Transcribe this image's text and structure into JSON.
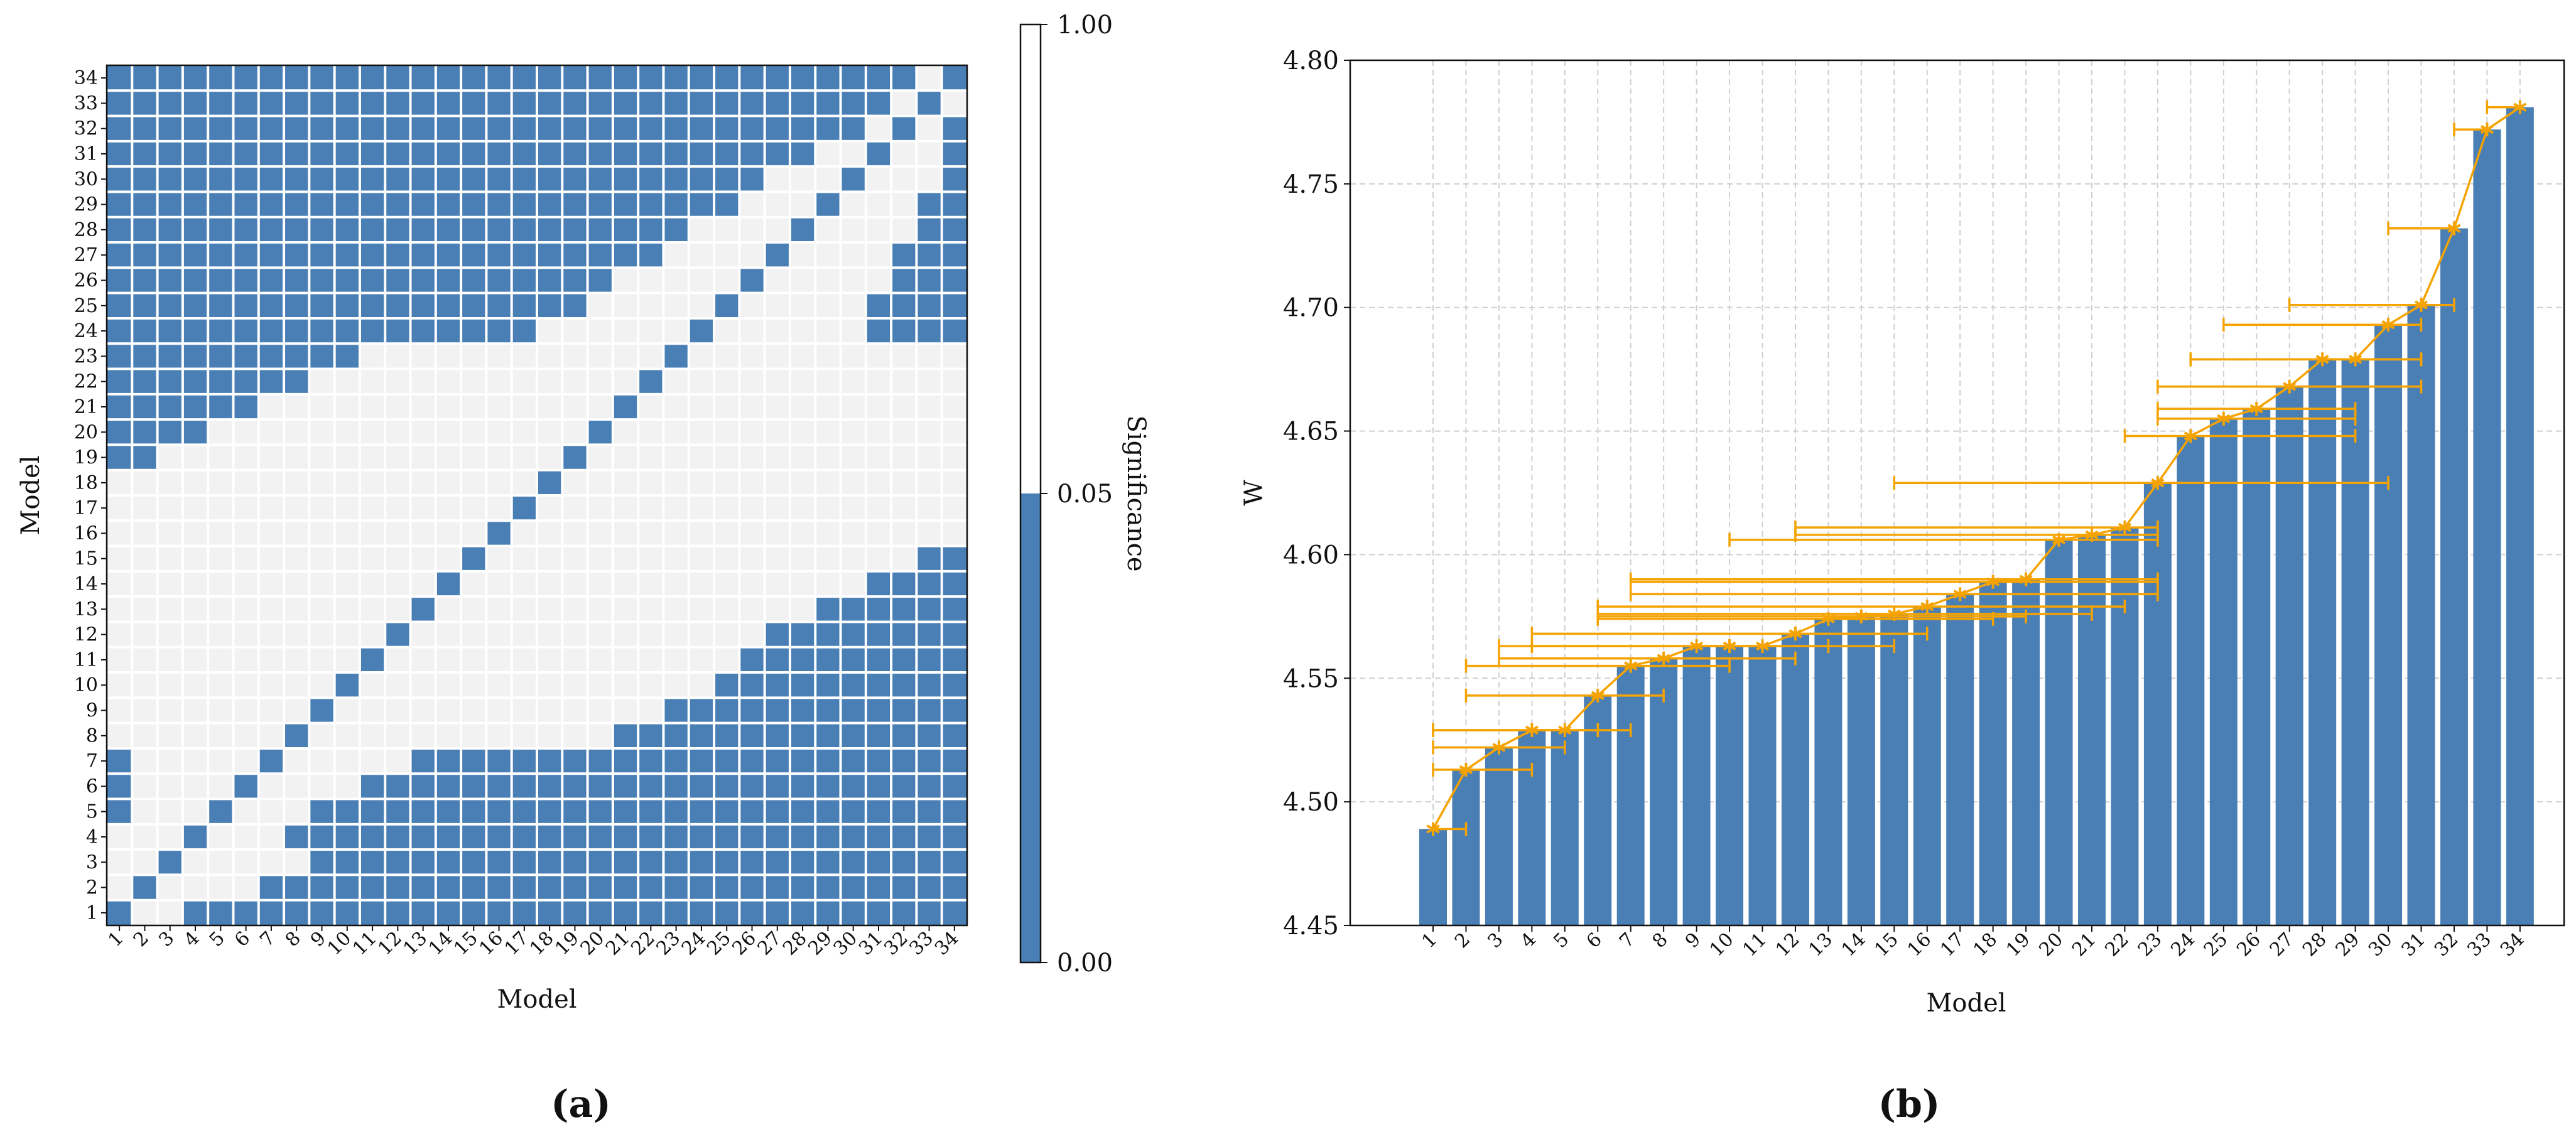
{
  "panel_a_label": "(a)",
  "panel_b_label": "(b)",
  "chart_data": [
    {
      "type": "heatmap",
      "panel": "(a)",
      "xlabel": "Model",
      "ylabel": "Model",
      "models": [
        "1",
        "2",
        "3",
        "4",
        "5",
        "6",
        "7",
        "8",
        "9",
        "10",
        "11",
        "12",
        "13",
        "14",
        "15",
        "16",
        "17",
        "18",
        "19",
        "20",
        "21",
        "22",
        "23",
        "24",
        "25",
        "26",
        "27",
        "28",
        "29",
        "30",
        "31",
        "32",
        "33",
        "34"
      ],
      "cell_values": {
        "significant": 0.0,
        "not_significant": 1.0
      },
      "nonsignificant_rule": "cell (i,j) is white (not significant) when i != j and |i-j| <= limit[i] (limits are symmetric); diagonal is blue",
      "nonsignificant_limit_by_model": [
        2,
        4,
        5,
        3,
        3,
        4,
        5,
        12,
        13,
        14,
        14,
        14,
        15,
        16,
        17,
        18,
        18,
        17,
        16,
        15,
        14,
        13,
        12,
        6,
        5,
        5,
        4,
        4,
        3,
        3,
        2,
        1,
        1,
        1
      ],
      "colorbar": {
        "label": "Significance",
        "ticks": [
          "0.00",
          "0.05",
          "1.00"
        ],
        "boundaries": [
          0.0,
          0.05,
          1.0
        ],
        "colors": [
          "#4a7fb5",
          "#ffffff"
        ]
      },
      "colors": {
        "significant": "#4a7fb5",
        "not_significant": "#f2f2f2",
        "grid": "#ffffff"
      }
    },
    {
      "type": "bar",
      "panel": "(b)",
      "xlabel": "Model",
      "ylabel": "W",
      "ylim": [
        4.45,
        4.8
      ],
      "yticks": [
        "4.45",
        "4.50",
        "4.55",
        "4.60",
        "4.65",
        "4.70",
        "4.75",
        "4.80"
      ],
      "categories": [
        "1",
        "2",
        "3",
        "4",
        "5",
        "6",
        "7",
        "8",
        "9",
        "10",
        "11",
        "12",
        "13",
        "14",
        "15",
        "16",
        "17",
        "18",
        "19",
        "20",
        "21",
        "22",
        "23",
        "24",
        "25",
        "26",
        "27",
        "28",
        "29",
        "30",
        "31",
        "32",
        "33",
        "34"
      ],
      "values": [
        4.489,
        4.513,
        4.522,
        4.529,
        4.529,
        4.543,
        4.555,
        4.558,
        4.563,
        4.563,
        4.563,
        4.568,
        4.574,
        4.575,
        4.576,
        4.579,
        4.584,
        4.589,
        4.59,
        4.606,
        4.608,
        4.611,
        4.629,
        4.648,
        4.655,
        4.659,
        4.668,
        4.679,
        4.679,
        4.693,
        4.701,
        4.732,
        4.772,
        4.781
      ],
      "interval_left_model": [
        1,
        1,
        1,
        1,
        1,
        2,
        2,
        3,
        3,
        4,
        4,
        4,
        6,
        6,
        6,
        6,
        7,
        7,
        7,
        10,
        12,
        12,
        15,
        22,
        23,
        23,
        23,
        24,
        24,
        25,
        27,
        30,
        32,
        33
      ],
      "interval_right_model": [
        2,
        4,
        5,
        6,
        7,
        8,
        10,
        12,
        13,
        13,
        15,
        16,
        18,
        19,
        21,
        22,
        23,
        23,
        23,
        23,
        23,
        23,
        30,
        29,
        29,
        29,
        31,
        31,
        31,
        31,
        32,
        32,
        33,
        34
      ],
      "grid": true,
      "colors": {
        "bar": "#4a7fb5",
        "line": "#f5a300",
        "grid": "#cfcfcf"
      }
    }
  ]
}
